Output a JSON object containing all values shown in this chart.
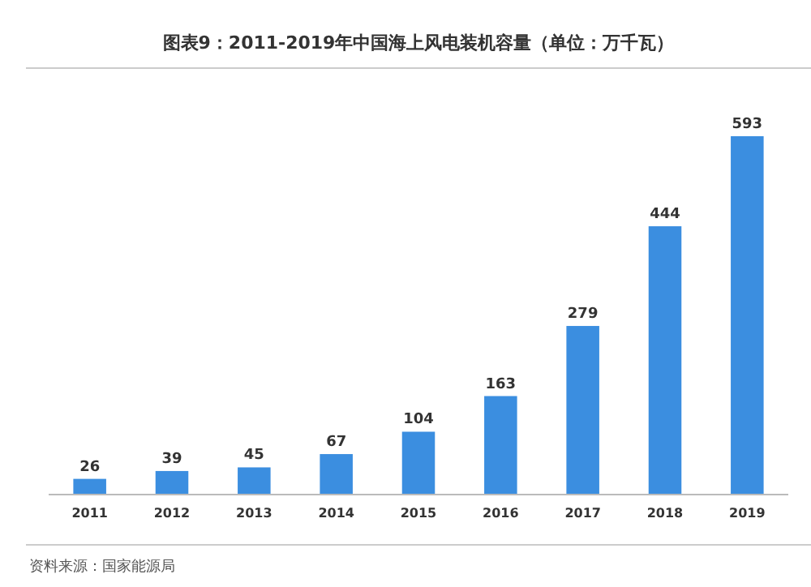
{
  "chart_data": {
    "type": "bar",
    "title": "图表9：2011-2019年中国海上风电装机容量（单位：万千瓦）",
    "categories": [
      "2011",
      "2012",
      "2013",
      "2014",
      "2015",
      "2016",
      "2017",
      "2018",
      "2019"
    ],
    "values": [
      26,
      39,
      45,
      67,
      104,
      163,
      279,
      444,
      593
    ],
    "color": "#3b8ee0",
    "data_labels": true,
    "annotations": [
      "资料来源：国家能源局"
    ]
  }
}
